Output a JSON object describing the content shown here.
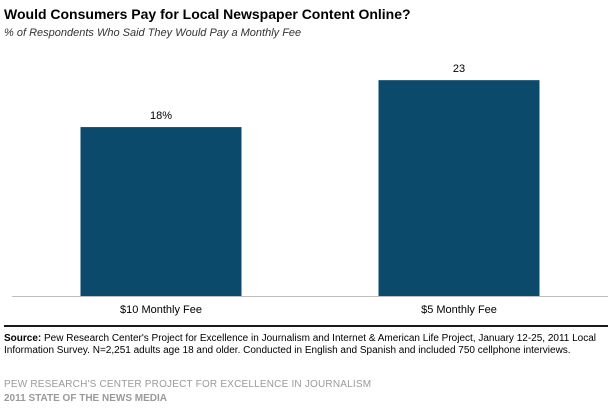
{
  "header": {
    "title": "Would Consumers  Pay for Local Newspaper  Content Online?",
    "subtitle": "% of Respondents Who Said They Would Pay a Monthly Fee"
  },
  "chart_data": {
    "type": "bar",
    "title": "Would Consumers  Pay for Local Newspaper  Content Online?",
    "subtitle": "% of Respondents Who Said They Would Pay a Monthly Fee",
    "categories": [
      "$10 Monthly Fee",
      "$5 Monthly Fee"
    ],
    "values": [
      18,
      23
    ],
    "data_labels": [
      "18%",
      "23"
    ],
    "xlabel": "",
    "ylabel": "",
    "ylim": [
      0,
      26
    ],
    "grid": false,
    "bar_color": "#0b4a6b"
  },
  "source": {
    "label": "Source:",
    "text": " Pew Research Center's Project for Excellence in Journalism and Internet & American Life Project, January 12-25, 2011 Local Information Survey.  N=2,251 adults age 18 and older. Conducted in English and Spanish and included 750 cellphone interviews."
  },
  "footer": {
    "line1": "PEW RESEARCH'S CENTER PROJECT FOR EXCELLENCE IN JOURNALISM",
    "line2": "2011 STATE OF THE NEWS MEDIA"
  }
}
